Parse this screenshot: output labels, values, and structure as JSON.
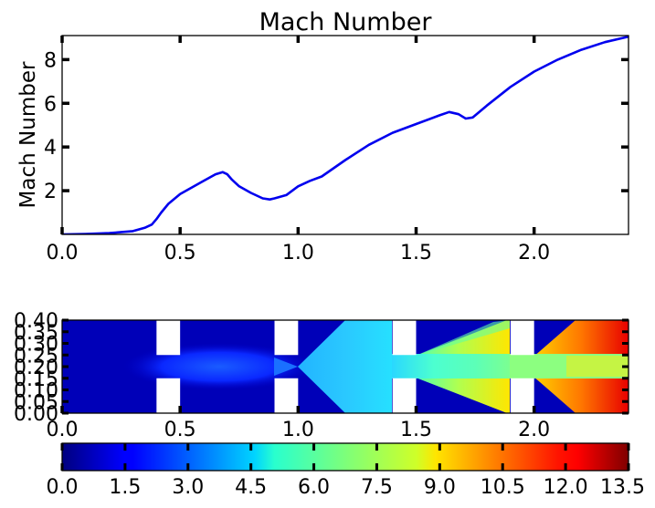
{
  "chart_data": [
    {
      "type": "line",
      "title": "Mach Number",
      "xlabel": "",
      "ylabel": "Mach Number",
      "xlim": [
        0.0,
        2.4
      ],
      "ylim": [
        0.0,
        9.1
      ],
      "x_ticks": [
        0.0,
        0.5,
        1.0,
        1.5,
        2.0
      ],
      "x_tick_labels": [
        "0.0",
        "0.5",
        "1.0",
        "1.5",
        "2.0"
      ],
      "y_ticks": [
        2,
        4,
        6,
        8
      ],
      "y_tick_labels": [
        "2",
        "4",
        "6",
        "8"
      ],
      "grid": false,
      "series": [
        {
          "color": "#0000ee",
          "x": [
            0.0,
            0.1,
            0.2,
            0.3,
            0.35,
            0.38,
            0.4,
            0.42,
            0.45,
            0.5,
            0.55,
            0.6,
            0.65,
            0.68,
            0.7,
            0.72,
            0.75,
            0.8,
            0.85,
            0.88,
            0.9,
            0.95,
            1.0,
            1.05,
            1.1,
            1.2,
            1.3,
            1.4,
            1.5,
            1.6,
            1.64,
            1.68,
            1.71,
            1.74,
            1.8,
            1.9,
            2.0,
            2.1,
            2.2,
            2.3,
            2.4
          ],
          "y": [
            0.0,
            0.02,
            0.06,
            0.15,
            0.3,
            0.45,
            0.7,
            1.0,
            1.4,
            1.85,
            2.15,
            2.45,
            2.75,
            2.85,
            2.75,
            2.5,
            2.2,
            1.9,
            1.65,
            1.6,
            1.65,
            1.8,
            2.2,
            2.45,
            2.65,
            3.4,
            4.1,
            4.65,
            5.05,
            5.45,
            5.6,
            5.5,
            5.3,
            5.35,
            5.9,
            6.75,
            7.45,
            8.0,
            8.45,
            8.8,
            9.05
          ]
        }
      ]
    },
    {
      "type": "heatmap",
      "title": "",
      "xlabel": "",
      "ylabel": "",
      "xlim": [
        0.0,
        2.4
      ],
      "ylim": [
        0.0,
        0.4
      ],
      "x_ticks": [
        0.0,
        0.5,
        1.0,
        1.5,
        2.0
      ],
      "x_tick_labels": [
        "0.0",
        "0.5",
        "1.0",
        "1.5",
        "2.0"
      ],
      "y_ticks": [
        0.0,
        0.05,
        0.1,
        0.15,
        0.2,
        0.25,
        0.3,
        0.35,
        0.4
      ],
      "y_tick_labels": [
        "0.00",
        "0.05",
        "0.10",
        "0.15",
        "0.20",
        "0.25",
        "0.30",
        "0.35",
        "0.40"
      ],
      "solid_blocks": [
        {
          "x": [
            0.4,
            0.5
          ],
          "y": [
            0.25,
            0.4
          ]
        },
        {
          "x": [
            0.4,
            0.5
          ],
          "y": [
            0.0,
            0.15
          ]
        },
        {
          "x": [
            0.9,
            1.0
          ],
          "y": [
            0.25,
            0.4
          ]
        },
        {
          "x": [
            0.9,
            1.0
          ],
          "y": [
            0.0,
            0.15
          ]
        },
        {
          "x": [
            1.4,
            1.5
          ],
          "y": [
            0.25,
            0.4
          ]
        },
        {
          "x": [
            1.4,
            1.5
          ],
          "y": [
            0.0,
            0.15
          ]
        },
        {
          "x": [
            1.9,
            2.0
          ],
          "y": [
            0.25,
            0.4
          ]
        },
        {
          "x": [
            1.9,
            2.0
          ],
          "y": [
            0.0,
            0.15
          ]
        }
      ],
      "colorbar": {
        "colormap": "jet",
        "range": [
          0.0,
          13.5
        ],
        "ticks": [
          0.0,
          1.5,
          3.0,
          4.5,
          6.0,
          7.5,
          9.0,
          10.5,
          12.0,
          13.5
        ],
        "tick_labels": [
          "0.0",
          "1.5",
          "3.0",
          "4.5",
          "6.0",
          "7.5",
          "9.0",
          "10.5",
          "12.0",
          "13.5"
        ]
      }
    }
  ]
}
